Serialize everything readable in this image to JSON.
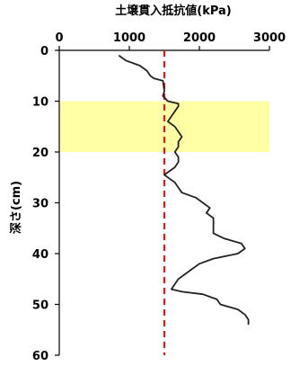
{
  "chart_data": {
    "type": "line",
    "title": "",
    "xlabel": "土壌貫入抵抗値(kPa)",
    "ylabel": "深さ(cm)",
    "xlim": [
      0,
      3000
    ],
    "ylim": [
      0,
      60
    ],
    "y_inverted": true,
    "x_axis_position": "top",
    "xticks": [
      "0",
      "1000",
      "2000",
      "3000"
    ],
    "yticks": [
      "0",
      "10",
      "20",
      "30",
      "40",
      "50",
      "60"
    ],
    "grid": false,
    "highlight_band": {
      "y_from": 10,
      "y_to": 20,
      "color": "#ffffa6"
    },
    "reference_line": {
      "x": 1500,
      "color": "#e8141a",
      "style": "dashed"
    },
    "series": [
      {
        "color": "#222222",
        "x": [
          850,
          950,
          1150,
          1250,
          1300,
          1350,
          1480,
          1500,
          1480,
          1550,
          1700,
          1700,
          1650,
          1600,
          1550,
          1650,
          1750,
          1700,
          1700,
          1650,
          1700,
          1700,
          1650,
          1550,
          1500,
          1550,
          1650,
          1700,
          1750,
          1950,
          2050,
          2150,
          2100,
          2200,
          2200,
          2350,
          2600,
          2650,
          2550,
          2200,
          2000,
          1900,
          1800,
          1700,
          1600,
          1750,
          2050,
          2250,
          2300,
          2550,
          2650,
          2700,
          2700
        ],
        "y": [
          1,
          2,
          3,
          4,
          5,
          5.5,
          6,
          8,
          9,
          10,
          10.5,
          11,
          12,
          13,
          14,
          15,
          17,
          18,
          19,
          20,
          21,
          22,
          23,
          24,
          24.5,
          25,
          26,
          27,
          28,
          29,
          30,
          31,
          32,
          33,
          36,
          37,
          38,
          39,
          40,
          41,
          42,
          43,
          44,
          45,
          47,
          47.5,
          48,
          49,
          50,
          51,
          52,
          53,
          54
        ]
      }
    ]
  }
}
